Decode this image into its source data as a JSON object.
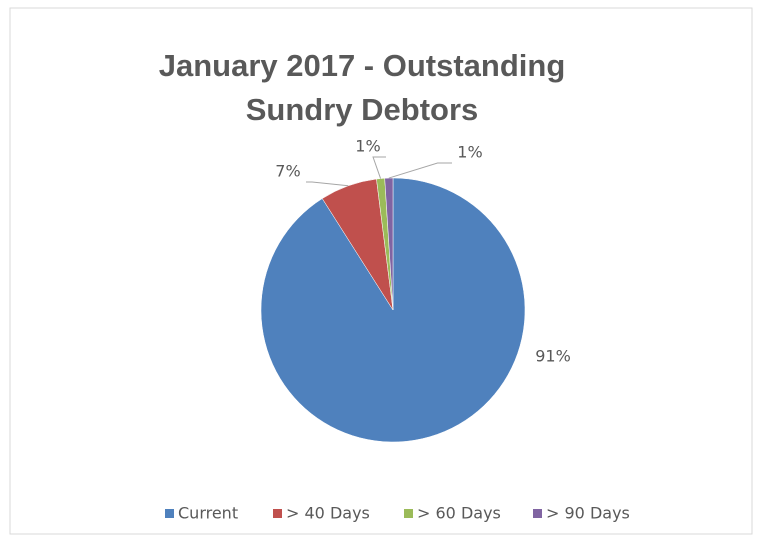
{
  "chart_data": {
    "type": "pie",
    "title": "January 2017 - Outstanding Sundry Debtors",
    "categories": [
      "Current",
      "> 40 Days",
      "> 60 Days",
      "> 90 Days"
    ],
    "values": [
      91,
      7,
      1,
      1
    ],
    "value_labels": [
      "91%",
      "7%",
      "1%",
      "1%"
    ],
    "colors": [
      "#4f81bd",
      "#c0504d",
      "#9bbb59",
      "#8064a2"
    ],
    "legend": "bottom"
  }
}
